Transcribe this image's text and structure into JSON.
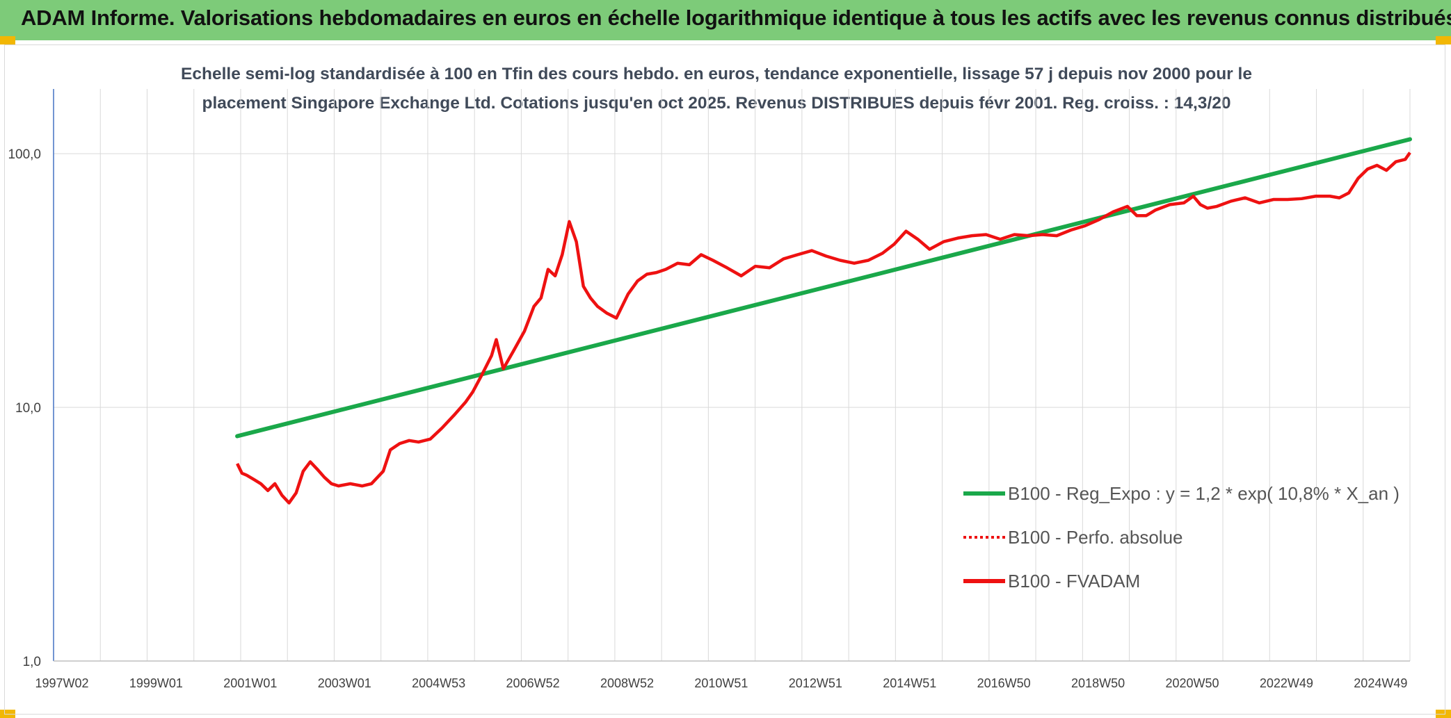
{
  "header": {
    "title": "ADAM Informe. Valorisations hebdomadaires en euros en échelle logarithmique identique à tous les actifs avec les revenus connus distribués"
  },
  "colors": {
    "header_bg": "#7dcb79",
    "corner": "#f2b705",
    "trend": "#1aa84a",
    "price": "#ee1111",
    "grid": "#d9d9d9",
    "axis": "#4472c4"
  },
  "chart_data": {
    "type": "line",
    "title_line1": "Echelle semi-log standardisée à 100 en Tfin des cours hebdo. en euros, tendance exponentielle, lissage 57 j depuis nov 2000 pour le",
    "title_line2": "placement Singapore Exchange Ltd. Cotations jusqu'en oct 2025. Revenus DISTRIBUES depuis févr 2001. Reg. croiss. : 14,3/20",
    "y_scale": "log",
    "ylim": [
      1,
      180
    ],
    "y_ticks": [
      "100,0",
      "10,0",
      "1,0"
    ],
    "x_ticks": [
      "1997W02",
      "1999W01",
      "2001W01",
      "2003W01",
      "2004W53",
      "2006W52",
      "2008W52",
      "2010W51",
      "2012W51",
      "2014W51",
      "2016W50",
      "2018W50",
      "2020W50",
      "2022W49",
      "2024W49"
    ],
    "x_range_years": [
      1997.0,
      2025.8
    ],
    "legend": [
      {
        "label": "B100 - Reg_Expo : y = 1,2 * exp( 10,8% *  X_an )",
        "style": "solid",
        "color": "#1aa84a"
      },
      {
        "label": "B100 - Perfo. absolue",
        "style": "dotted",
        "color": "#ee1111"
      },
      {
        "label": "B100 - FVADAM",
        "style": "solid",
        "color": "#ee1111"
      }
    ],
    "series": [
      {
        "name": "B100 - Reg_Expo",
        "x": [
          2000.9,
          2025.8
        ],
        "values": [
          7.7,
          114
        ]
      },
      {
        "name": "B100 - FVADAM",
        "x": [
          2000.9,
          2001.0,
          2001.1,
          2001.25,
          2001.4,
          2001.55,
          2001.7,
          2001.85,
          2002.0,
          2002.15,
          2002.3,
          2002.45,
          2002.6,
          2002.75,
          2002.9,
          2003.05,
          2003.3,
          2003.55,
          2003.75,
          2004.0,
          2004.15,
          2004.35,
          2004.55,
          2004.75,
          2005.0,
          2005.25,
          2005.5,
          2005.75,
          2005.9,
          2006.1,
          2006.3,
          2006.4,
          2006.55,
          2006.75,
          2007.0,
          2007.2,
          2007.35,
          2007.5,
          2007.65,
          2007.8,
          2007.95,
          2008.1,
          2008.25,
          2008.4,
          2008.55,
          2008.75,
          2008.95,
          2009.2,
          2009.4,
          2009.6,
          2009.8,
          2010.0,
          2010.25,
          2010.5,
          2010.75,
          2011.0,
          2011.3,
          2011.6,
          2011.9,
          2012.2,
          2012.5,
          2012.8,
          2013.1,
          2013.4,
          2013.7,
          2014.0,
          2014.3,
          2014.6,
          2014.85,
          2015.1,
          2015.35,
          2015.6,
          2015.9,
          2016.2,
          2016.5,
          2016.8,
          2017.1,
          2017.4,
          2017.7,
          2018.0,
          2018.3,
          2018.6,
          2018.9,
          2019.2,
          2019.5,
          2019.8,
          2020.0,
          2020.2,
          2020.4,
          2020.7,
          2021.0,
          2021.2,
          2021.35,
          2021.5,
          2021.7,
          2022.0,
          2022.3,
          2022.6,
          2022.9,
          2023.2,
          2023.5,
          2023.8,
          2024.1,
          2024.3,
          2024.5,
          2024.7,
          2024.9,
          2025.1,
          2025.3,
          2025.5,
          2025.7,
          2025.8
        ],
        "values": [
          6.0,
          5.5,
          5.4,
          5.2,
          5.0,
          4.7,
          5.0,
          4.5,
          4.2,
          4.6,
          5.6,
          6.1,
          5.7,
          5.3,
          5.0,
          4.9,
          5.0,
          4.9,
          5.0,
          5.6,
          6.8,
          7.2,
          7.4,
          7.3,
          7.5,
          8.3,
          9.3,
          10.5,
          11.5,
          13.5,
          16.0,
          18.5,
          14.2,
          16.5,
          20.0,
          25.0,
          27.0,
          35.0,
          33.0,
          40.0,
          54.0,
          45.0,
          30.0,
          27.0,
          25.0,
          23.5,
          22.5,
          28.0,
          31.5,
          33.5,
          34.0,
          35.0,
          37.0,
          36.5,
          40.0,
          38.0,
          35.5,
          33.0,
          36.0,
          35.5,
          38.5,
          40.0,
          41.5,
          39.5,
          38.0,
          37.0,
          38.0,
          40.5,
          44.0,
          49.5,
          46.0,
          42.0,
          45.0,
          46.5,
          47.5,
          48.0,
          46.0,
          48.0,
          47.5,
          48.0,
          47.5,
          50.0,
          52.0,
          55.0,
          59.0,
          62.0,
          57.0,
          57.0,
          60.0,
          63.0,
          64.0,
          68.0,
          63.0,
          61.0,
          62.0,
          65.0,
          67.0,
          64.0,
          66.0,
          66.0,
          66.5,
          68.0,
          68.0,
          67.0,
          70.0,
          80.0,
          87.0,
          90.0,
          86.0,
          93.0,
          95.0,
          101.0
        ]
      }
    ]
  }
}
